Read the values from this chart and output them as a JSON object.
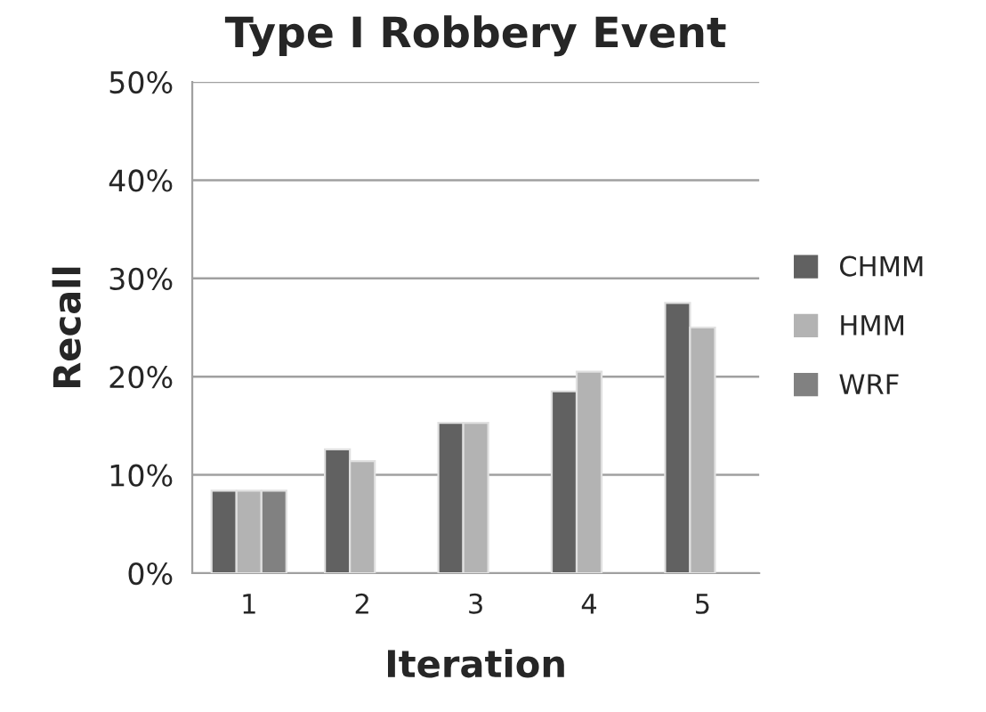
{
  "chart_data": {
    "type": "bar",
    "title": "Type I Robbery Event",
    "xlabel": "Iteration",
    "ylabel": "Recall",
    "categories": [
      "1",
      "2",
      "3",
      "4",
      "5"
    ],
    "series": [
      {
        "name": "CHMM",
        "color": "#616161",
        "values": [
          8.4,
          12.6,
          15.3,
          18.5,
          27.5
        ]
      },
      {
        "name": "HMM",
        "color": "#b3b3b3",
        "values": [
          8.4,
          11.4,
          15.3,
          20.5,
          25.0
        ]
      },
      {
        "name": "WRF",
        "color": "#818181",
        "values": [
          8.4,
          null,
          null,
          null,
          null
        ]
      }
    ],
    "ylim": [
      0,
      50
    ],
    "yticks": [
      {
        "value": 0,
        "label": "0%"
      },
      {
        "value": 10,
        "label": "10%"
      },
      {
        "value": 20,
        "label": "20%"
      },
      {
        "value": 30,
        "label": "30%"
      },
      {
        "value": 40,
        "label": "40%"
      },
      {
        "value": 50,
        "label": "50%"
      }
    ],
    "grid": "y",
    "legend": "right"
  }
}
